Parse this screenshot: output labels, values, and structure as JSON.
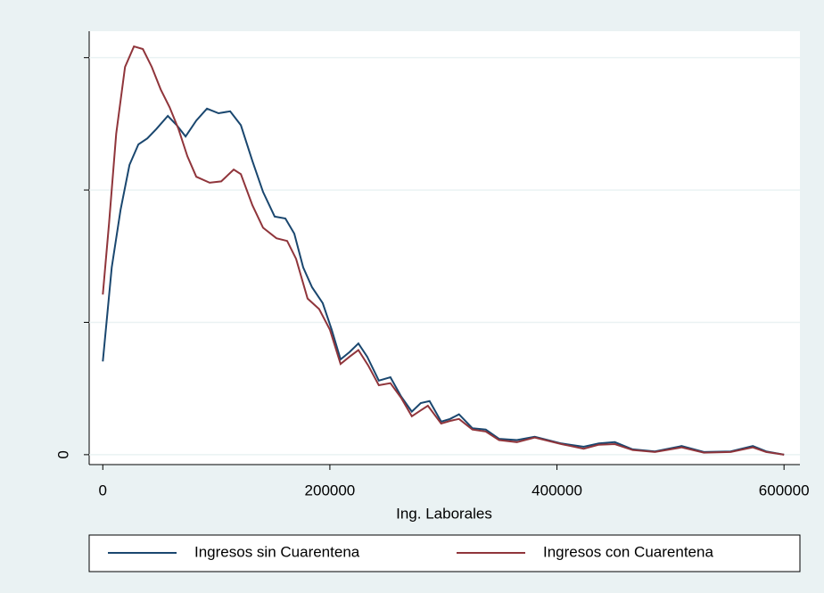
{
  "chart_data": {
    "type": "line",
    "xlabel": "Ing. Laborales",
    "xlim": [
      -12000,
      614000
    ],
    "ylim": [
      -1.5e-07,
      6.4e-06
    ],
    "xticks": [
      0,
      200000,
      400000,
      600000
    ],
    "yticks": [
      0
    ],
    "yticks_unlabeled": [
      2e-06,
      4e-06,
      6e-06
    ],
    "grid": true,
    "legend": "bottom",
    "series": [
      {
        "name": "Ingresos sin Cuarentena",
        "color": "#1a476f",
        "x": [
          0,
          7843,
          15686,
          23529,
          31373,
          39216,
          47059,
          57255,
          65098,
          72941,
          82353,
          91765,
          101961,
          112157,
          121569,
          131765,
          141176,
          151373,
          160784,
          168627,
          176471,
          184314,
          193725,
          201569,
          209412,
          217255,
          225098,
          232941,
          243137,
          253333,
          262745,
          272157,
          280000,
          287843,
          298039,
          305882,
          313725,
          325490,
          337255,
          349020,
          364706,
          380392,
          403922,
          423529,
          436863,
          450980,
          466667,
          486275,
          509804,
          529412,
          552941,
          572549,
          584314,
          600000
        ],
        "values": [
          1.41e-06,
          2.83e-06,
          3.7e-06,
          4.38e-06,
          4.69e-06,
          4.78e-06,
          4.92e-06,
          5.12e-06,
          4.98e-06,
          4.81e-06,
          5.05e-06,
          5.23e-06,
          5.16e-06,
          5.19e-06,
          4.98e-06,
          4.44e-06,
          3.97e-06,
          3.6e-06,
          3.57e-06,
          3.34e-06,
          2.83e-06,
          2.53e-06,
          2.29e-06,
          1.89e-06,
          1.44e-06,
          1.55e-06,
          1.68e-06,
          1.48e-06,
          1.12e-06,
          1.17e-06,
          8.8e-07,
          6.5e-07,
          7.8e-07,
          8.1e-07,
          5e-07,
          5.4e-07,
          6.1e-07,
          4e-07,
          3.8e-07,
          2.4e-07,
          2.2e-07,
          2.7e-07,
          1.7e-07,
          1.2e-07,
          1.7e-07,
          1.9e-07,
          8e-08,
          5e-08,
          1.3e-07,
          4e-08,
          5e-08,
          1.3e-07,
          5e-08,
          0
        ]
      },
      {
        "name": "Ingresos con Cuarentena",
        "color": "#90353b",
        "x": [
          0,
          5490,
          11765,
          19608,
          27451,
          35294,
          43137,
          50980,
          58824,
          66667,
          74510,
          82353,
          94118,
          104314,
          115294,
          121569,
          131765,
          141176,
          152941,
          162353,
          170196,
          180392,
          190588,
          200000,
          209412,
          217255,
          225098,
          233725,
          243137,
          253333,
          262745,
          272157,
          280000,
          286275,
          298039,
          305882,
          313725,
          325490,
          337255,
          349020,
          364706,
          380392,
          403922,
          423529,
          436863,
          450980,
          466667,
          486275,
          509804,
          529412,
          552941,
          572549,
          584314,
          600000
        ],
        "values": [
          2.42e-06,
          3.5e-06,
          4.85e-06,
          5.86e-06,
          6.17e-06,
          6.13e-06,
          5.86e-06,
          5.52e-06,
          5.25e-06,
          4.92e-06,
          4.51e-06,
          4.2e-06,
          4.11e-06,
          4.13e-06,
          4.31e-06,
          4.24e-06,
          3.77e-06,
          3.43e-06,
          3.27e-06,
          3.23e-06,
          2.96e-06,
          2.36e-06,
          2.2e-06,
          1.89e-06,
          1.37e-06,
          1.48e-06,
          1.58e-06,
          1.35e-06,
          1.05e-06,
          1.08e-06,
          8.6e-07,
          5.8e-07,
          6.7e-07,
          7.4e-07,
          4.7e-07,
          5.1e-07,
          5.4e-07,
          3.8e-07,
          3.5e-07,
          2.2e-07,
          1.9e-07,
          2.6e-07,
          1.6e-07,
          9e-08,
          1.5e-07,
          1.6e-07,
          7e-08,
          4e-08,
          1.1e-07,
          3e-08,
          4e-08,
          1.1e-07,
          4e-08,
          0
        ]
      }
    ]
  }
}
